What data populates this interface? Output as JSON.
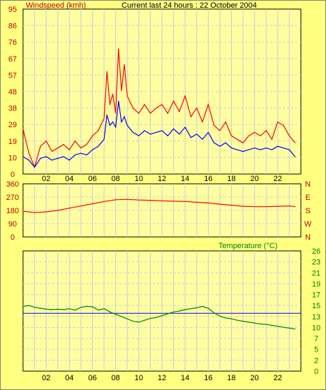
{
  "header": {
    "title": "Current last 24 hours : 22 October 2004"
  },
  "colors": {
    "background": "#ffff80",
    "plot_bg": "#ffffa0",
    "grid": "#c8c8e8",
    "wind_gust": "#ff0000",
    "wind_avg": "#0000ff",
    "direction": "#ff0000",
    "temperature": "#008000",
    "temp_ref": "#0000ff",
    "axis_text": "#000000"
  },
  "chart_data": [
    {
      "type": "line",
      "title": "Windspeed (kmh)",
      "x_ticks": [
        "02",
        "04",
        "06",
        "08",
        "10",
        "12",
        "14",
        "16",
        "18",
        "20",
        "22"
      ],
      "y_ticks": [
        "0",
        "10",
        "19",
        "29",
        "38",
        "48",
        "57",
        "67",
        "76",
        "86",
        "95"
      ],
      "ylim": [
        0,
        95
      ],
      "xlim": [
        0,
        24
      ],
      "grid": true,
      "series": [
        {
          "key": "gust",
          "x": [
            0,
            0.5,
            1,
            1.5,
            2,
            2.5,
            3,
            3.5,
            4,
            4.5,
            5,
            5.5,
            6,
            6.5,
            7,
            7.25,
            7.5,
            7.75,
            8,
            8.25,
            8.5,
            8.75,
            9,
            9.5,
            10,
            10.5,
            11,
            11.5,
            12,
            12.5,
            13,
            13.5,
            14,
            14.5,
            15,
            15.5,
            16,
            16.5,
            17,
            17.5,
            18,
            18.5,
            19,
            19.5,
            20,
            20.5,
            21,
            21.5,
            22,
            22.5,
            23,
            23.5
          ],
          "values": [
            26,
            12,
            4,
            16,
            19,
            13,
            15,
            17,
            14,
            19,
            15,
            17,
            22,
            25,
            32,
            59,
            40,
            46,
            35,
            72,
            48,
            63,
            45,
            38,
            35,
            40,
            35,
            38,
            40,
            35,
            42,
            36,
            45,
            33,
            38,
            30,
            40,
            28,
            25,
            30,
            22,
            20,
            18,
            22,
            24,
            22,
            25,
            20,
            30,
            28,
            22,
            18
          ]
        },
        {
          "key": "avg",
          "x": [
            0,
            0.5,
            1,
            1.5,
            2,
            2.5,
            3,
            3.5,
            4,
            4.5,
            5,
            5.5,
            6,
            6.5,
            7,
            7.25,
            7.5,
            7.75,
            8,
            8.25,
            8.5,
            8.75,
            9,
            9.5,
            10,
            10.5,
            11,
            11.5,
            12,
            12.5,
            13,
            13.5,
            14,
            14.5,
            15,
            15.5,
            16,
            16.5,
            17,
            17.5,
            18,
            18.5,
            19,
            19.5,
            20,
            20.5,
            21,
            21.5,
            22,
            22.5,
            23,
            23.5
          ],
          "values": [
            10,
            8,
            4,
            9,
            10,
            8,
            9,
            10,
            8,
            11,
            12,
            11,
            14,
            16,
            20,
            34,
            28,
            30,
            27,
            42,
            30,
            33,
            28,
            24,
            22,
            25,
            23,
            24,
            25,
            22,
            26,
            23,
            27,
            21,
            23,
            20,
            24,
            18,
            16,
            18,
            15,
            14,
            13,
            14,
            15,
            14,
            15,
            14,
            16,
            15,
            14,
            10
          ]
        }
      ]
    },
    {
      "type": "line",
      "title": "",
      "y_ticks": [
        "0",
        "90",
        "180",
        "270",
        "360"
      ],
      "y_right_labels": [
        "N",
        "W",
        "S",
        "E",
        "N"
      ],
      "ylim": [
        0,
        360
      ],
      "xlim": [
        0,
        24
      ],
      "grid": true,
      "series": [
        {
          "key": "direction",
          "x": [
            0,
            1,
            2,
            3,
            4,
            5,
            6,
            7,
            8,
            9,
            10,
            11,
            12,
            13,
            14,
            15,
            16,
            17,
            18,
            19,
            20,
            21,
            22,
            23,
            23.5
          ],
          "values": [
            175,
            165,
            170,
            180,
            195,
            210,
            225,
            240,
            252,
            255,
            250,
            248,
            245,
            242,
            240,
            235,
            230,
            222,
            215,
            208,
            205,
            205,
            208,
            210,
            205
          ]
        }
      ]
    },
    {
      "type": "line",
      "title": "Temperature (°C)",
      "x_ticks": [
        "02",
        "04",
        "06",
        "08",
        "10",
        "12",
        "14",
        "16",
        "18",
        "20",
        "22"
      ],
      "y_ticks": [
        "0",
        "2",
        "5",
        "7",
        "10",
        "13",
        "15",
        "17",
        "19",
        "21",
        "23",
        "26"
      ],
      "ylim": [
        0,
        26
      ],
      "xlim": [
        0,
        24
      ],
      "grid": true,
      "series": [
        {
          "key": "temp",
          "x": [
            0,
            0.5,
            1,
            1.5,
            2,
            2.5,
            3,
            3.5,
            4,
            4.5,
            5,
            5.5,
            6,
            6.5,
            7,
            7.5,
            8,
            8.5,
            9,
            9.5,
            10,
            10.5,
            11,
            11.5,
            12,
            12.5,
            13,
            13.5,
            14,
            14.5,
            15,
            15.5,
            16,
            16.5,
            17,
            17.5,
            18,
            18.5,
            19,
            19.5,
            20,
            20.5,
            21,
            21.5,
            22,
            22.5,
            23,
            23.5
          ],
          "values": [
            14.0,
            14.2,
            13.8,
            13.6,
            13.4,
            13.3,
            13.4,
            13.3,
            13.5,
            13.2,
            13.8,
            14.0,
            13.9,
            13.2,
            13.5,
            12.8,
            12.3,
            11.8,
            11.3,
            10.8,
            10.6,
            11.0,
            11.4,
            11.6,
            12.0,
            12.4,
            12.8,
            13.0,
            13.3,
            13.5,
            13.7,
            14.0,
            13.6,
            12.6,
            11.9,
            11.5,
            11.3,
            11.0,
            10.8,
            10.6,
            10.4,
            10.2,
            10.1,
            9.9,
            9.7,
            9.5,
            9.3,
            9.1
          ]
        },
        {
          "key": "reference",
          "x": [
            0,
            24
          ],
          "values": [
            12.5,
            12.5
          ]
        }
      ]
    }
  ]
}
